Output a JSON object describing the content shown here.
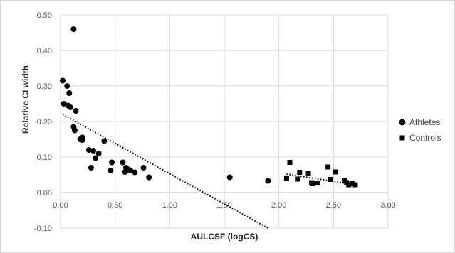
{
  "chart_data": {
    "type": "scatter",
    "title": "",
    "xlabel": "AULCSF (logCS)",
    "ylabel": "Relative CI width",
    "xlim": [
      0,
      3
    ],
    "ylim": [
      -0.1,
      0.5
    ],
    "x_ticks": [
      "0.00",
      "0.50",
      "1.00",
      "1.50",
      "2.00",
      "2.50",
      "3.00"
    ],
    "y_ticks": [
      "-0.10",
      "0.00",
      "0.10",
      "0.20",
      "0.30",
      "0.40",
      "0.50"
    ],
    "grid": true,
    "legend_position": "right",
    "series": [
      {
        "name": "Athletes",
        "marker": "circle",
        "color": "#000000",
        "points": [
          [
            0.02,
            0.315
          ],
          [
            0.03,
            0.25
          ],
          [
            0.06,
            0.3
          ],
          [
            0.07,
            0.245
          ],
          [
            0.08,
            0.28
          ],
          [
            0.09,
            0.24
          ],
          [
            0.12,
            0.46
          ],
          [
            0.12,
            0.185
          ],
          [
            0.13,
            0.175
          ],
          [
            0.14,
            0.23
          ],
          [
            0.18,
            0.15
          ],
          [
            0.2,
            0.155
          ],
          [
            0.2,
            0.148
          ],
          [
            0.26,
            0.12
          ],
          [
            0.28,
            0.07
          ],
          [
            0.3,
            0.118
          ],
          [
            0.32,
            0.097
          ],
          [
            0.35,
            0.11
          ],
          [
            0.4,
            0.145
          ],
          [
            0.46,
            0.062
          ],
          [
            0.47,
            0.085
          ],
          [
            0.57,
            0.085
          ],
          [
            0.59,
            0.058
          ],
          [
            0.6,
            0.07
          ],
          [
            0.62,
            0.065
          ],
          [
            0.64,
            0.062
          ],
          [
            0.68,
            0.057
          ],
          [
            0.76,
            0.07
          ],
          [
            0.81,
            0.043
          ],
          [
            1.55,
            0.043
          ],
          [
            1.9,
            0.033
          ]
        ]
      },
      {
        "name": "Controls",
        "marker": "square",
        "color": "#000000",
        "points": [
          [
            2.07,
            0.04
          ],
          [
            2.1,
            0.085
          ],
          [
            2.17,
            0.038
          ],
          [
            2.19,
            0.057
          ],
          [
            2.27,
            0.055
          ],
          [
            2.3,
            0.028
          ],
          [
            2.31,
            0.025
          ],
          [
            2.35,
            0.027
          ],
          [
            2.45,
            0.072
          ],
          [
            2.47,
            0.037
          ],
          [
            2.52,
            0.058
          ],
          [
            2.6,
            0.035
          ],
          [
            2.62,
            0.028
          ],
          [
            2.64,
            0.022
          ],
          [
            2.67,
            0.025
          ],
          [
            2.7,
            0.022
          ]
        ]
      }
    ],
    "trendlines": [
      {
        "series": "Athletes",
        "style": "dotted",
        "x": [
          0.02,
          1.9
        ],
        "y": [
          0.22,
          -0.1
        ]
      },
      {
        "series": "Controls",
        "style": "dotted",
        "x": [
          2.07,
          2.7
        ],
        "y": [
          0.052,
          0.022
        ]
      }
    ]
  }
}
